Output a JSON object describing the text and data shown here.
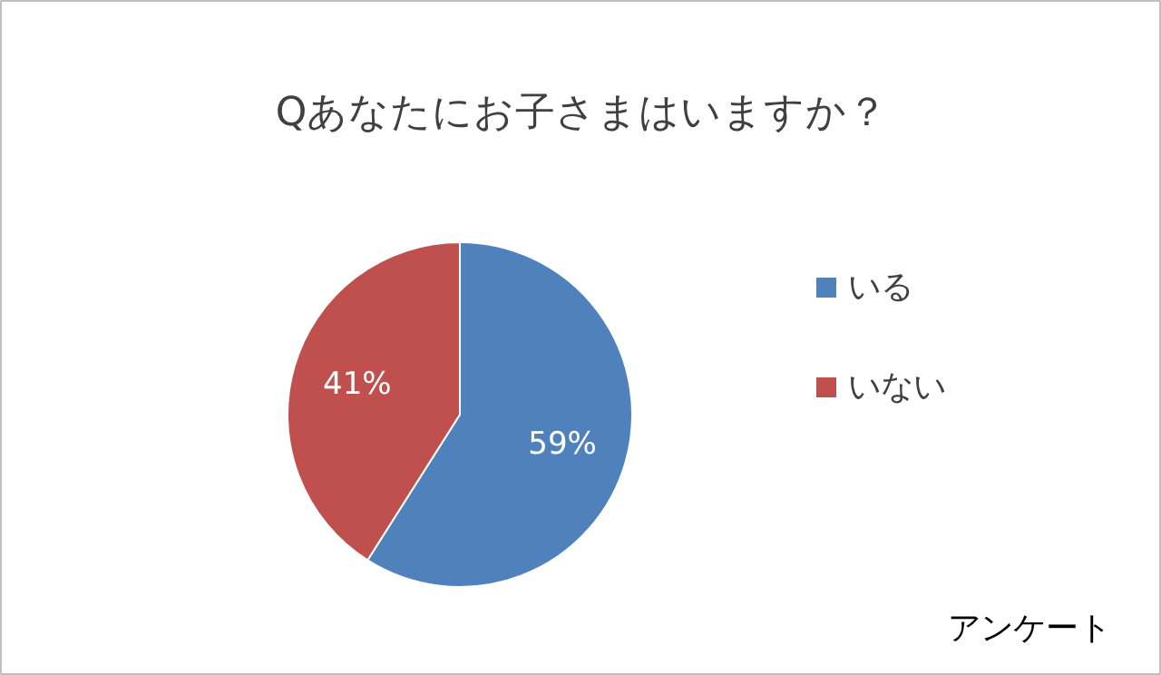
{
  "chart_data": {
    "type": "pie",
    "title": "Qあなたにお子さまはいますか？",
    "categories": [
      "いる",
      "いない"
    ],
    "values": [
      59,
      41
    ],
    "colors": [
      "#4f81bd",
      "#c0504d"
    ],
    "value_labels": [
      "59%",
      "41%"
    ],
    "legend": "right",
    "annotations": [
      "アンケート"
    ]
  }
}
